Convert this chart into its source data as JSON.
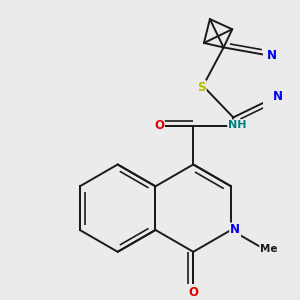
{
  "bg_color": "#ebebeb",
  "bond_color": "#1a1a1a",
  "bond_width": 1.4,
  "dbo": 0.035,
  "atom_colors": {
    "N": "#0000ee",
    "O": "#dd0000",
    "S": "#bbbb00",
    "C": "#1a1a1a",
    "NH_color": "#008080"
  },
  "font_size": 8.5
}
